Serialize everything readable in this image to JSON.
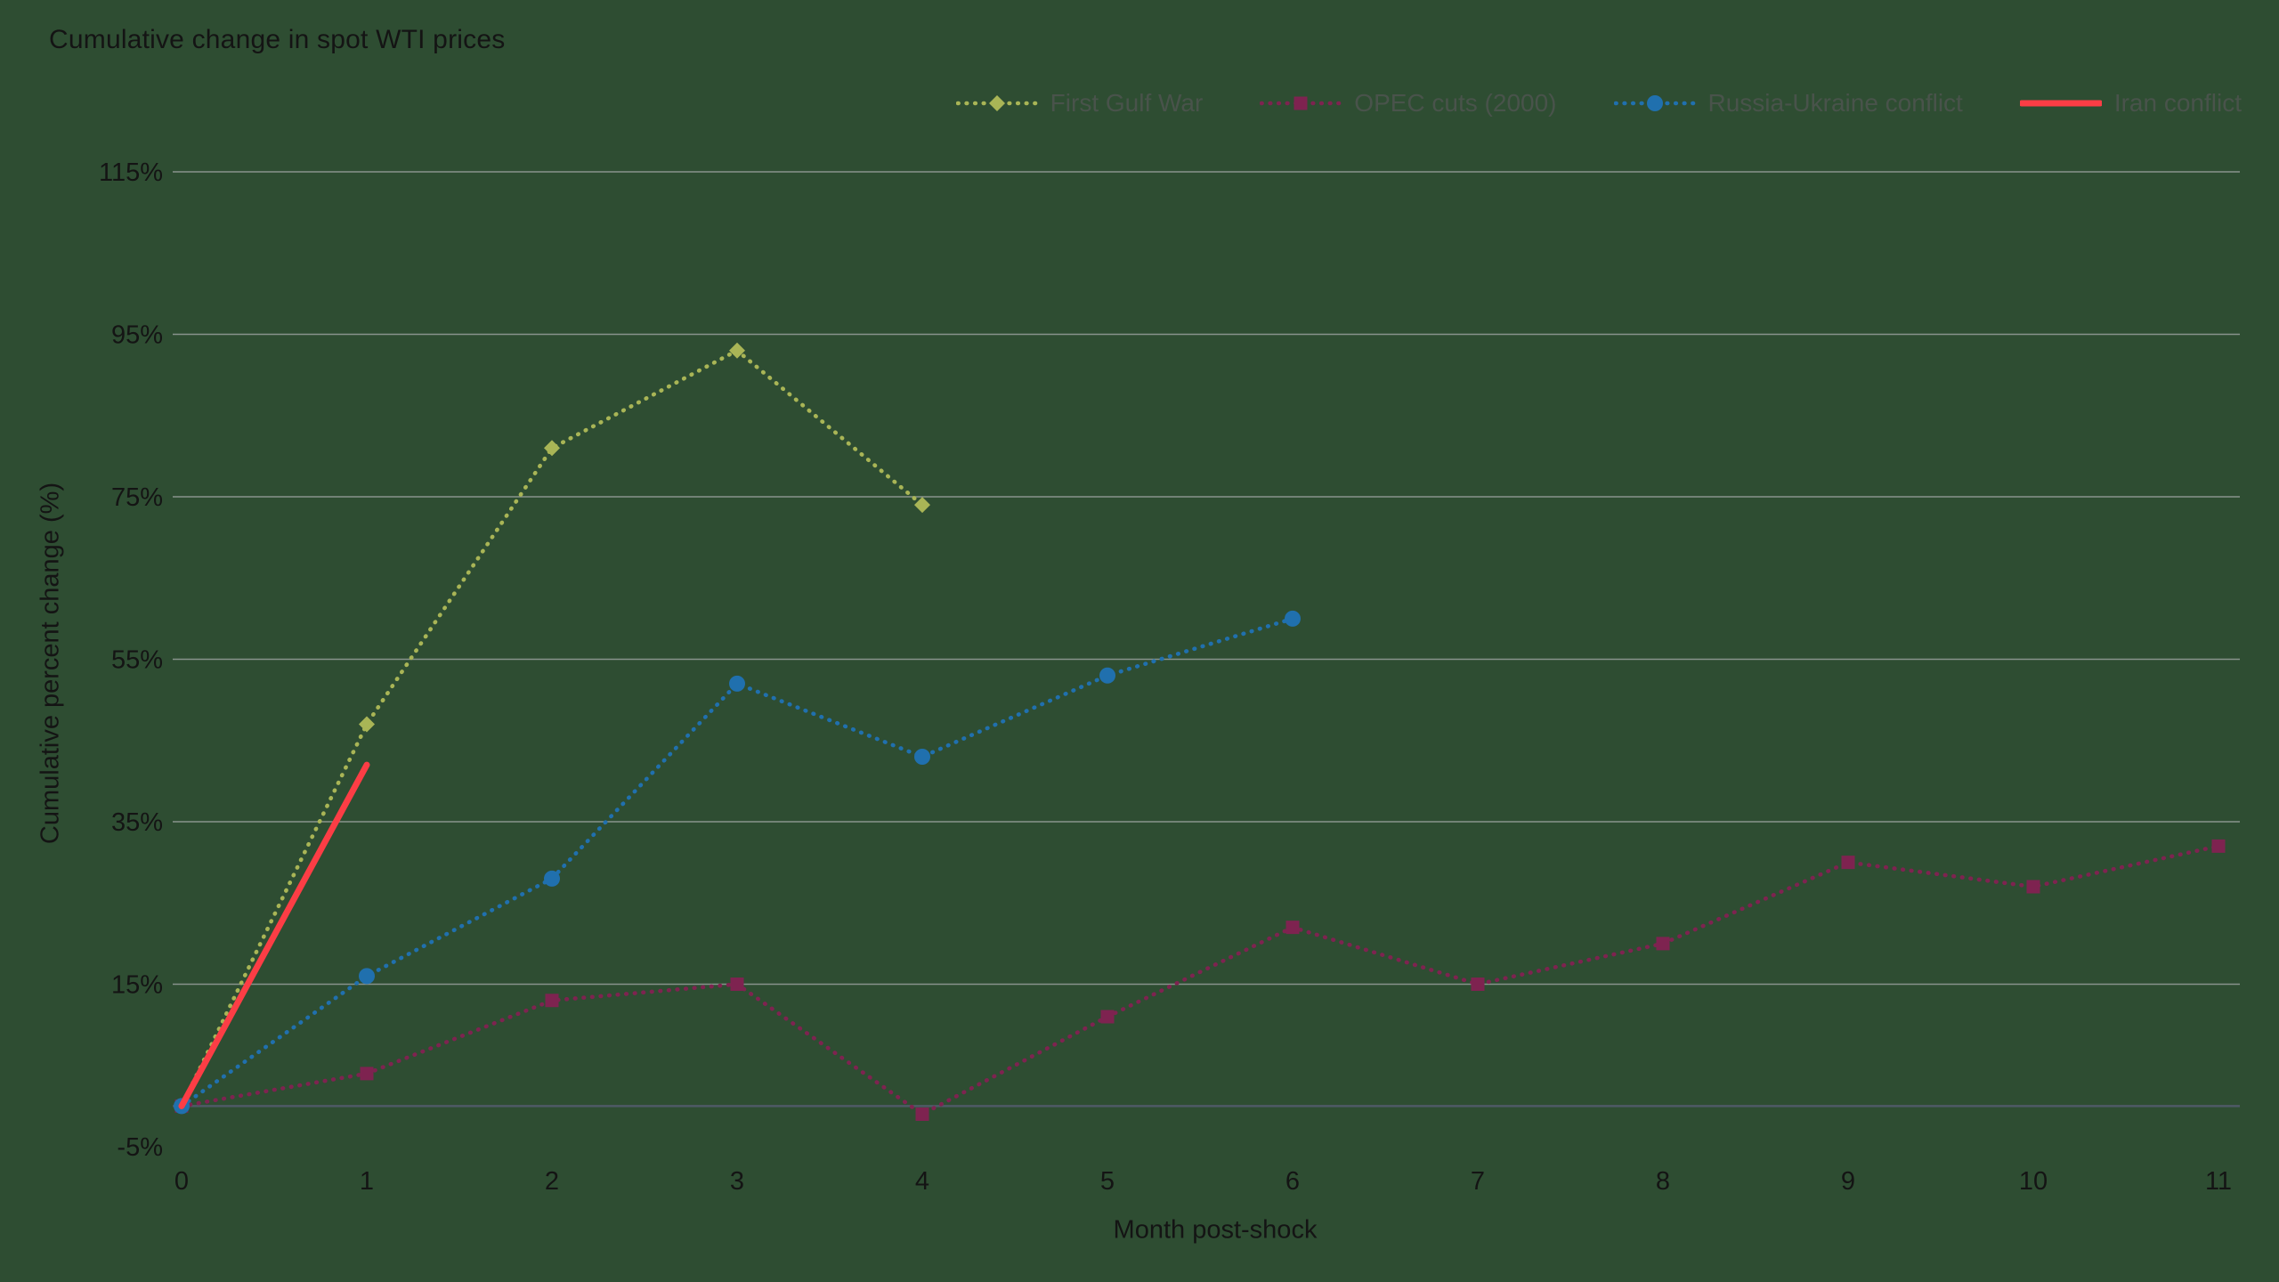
{
  "page": {
    "background": "#2e4d32"
  },
  "style": {
    "text_color": "#141414",
    "legend_text_color": "#49534b",
    "gridline_color": "#9aa09e",
    "zero_line_color": "#4e5a66"
  },
  "chart_data": {
    "type": "line",
    "title": "Cumulative change in spot WTI prices",
    "xlabel": "Month post-shock",
    "ylabel": "Cumulative percent change (%)",
    "x_tick_labels": [
      "0",
      "1",
      "2",
      "3",
      "4",
      "5",
      "6",
      "7",
      "8",
      "9",
      "10",
      "11"
    ],
    "y_tick_labels": [
      "-5%",
      "15%",
      "35%",
      "55%",
      "75%",
      "95%",
      "115%"
    ],
    "xlim": [
      0,
      11
    ],
    "ylim": [
      -5,
      115
    ],
    "grid": "horizontal",
    "zero_line": true,
    "legend_position": "top",
    "series": [
      {
        "name": "First Gulf War",
        "color": "#a9b556",
        "marker": "diamond",
        "line_style": "dotted",
        "x": [
          0,
          1,
          2,
          3,
          4
        ],
        "values": [
          0,
          47,
          81,
          93,
          74
        ]
      },
      {
        "name": "OPEC cuts (2000)",
        "color": "#7e2350",
        "marker": "square",
        "line_style": "dotted",
        "x": [
          0,
          1,
          2,
          3,
          4,
          5,
          6,
          7,
          8,
          9,
          10,
          11
        ],
        "values": [
          0,
          4,
          13,
          15,
          -1,
          11,
          22,
          15,
          20,
          30,
          27,
          32
        ]
      },
      {
        "name": "Russia-Ukraine conflict",
        "color": "#2070ae",
        "marker": "circle",
        "line_style": "dotted",
        "x": [
          0,
          1,
          2,
          3,
          4,
          5,
          6
        ],
        "values": [
          0,
          16,
          28,
          52,
          43,
          53,
          60
        ]
      },
      {
        "name": "Iran conflict",
        "color": "#fc3d45",
        "marker": "none",
        "line_style": "solid",
        "x": [
          0,
          1
        ],
        "values": [
          0,
          42
        ]
      }
    ]
  }
}
